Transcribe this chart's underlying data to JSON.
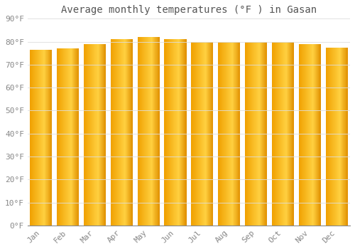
{
  "title": "Average monthly temperatures (°F ) in Gasan",
  "categories": [
    "Jan",
    "Feb",
    "Mar",
    "Apr",
    "May",
    "Jun",
    "Jul",
    "Aug",
    "Sep",
    "Oct",
    "Nov",
    "Dec"
  ],
  "values": [
    76.5,
    77.0,
    79.0,
    81.0,
    82.0,
    81.0,
    80.0,
    80.0,
    80.0,
    80.0,
    79.0,
    77.5
  ],
  "bar_color_left": "#F0A000",
  "bar_color_center": "#FFD040",
  "bar_color_right": "#E09000",
  "background_color": "#FFFFFF",
  "grid_color": "#DDDDDD",
  "text_color": "#888888",
  "title_color": "#555555",
  "ylim": [
    0,
    90
  ],
  "yticks": [
    0,
    10,
    20,
    30,
    40,
    50,
    60,
    70,
    80,
    90
  ],
  "ytick_labels": [
    "0°F",
    "10°F",
    "20°F",
    "30°F",
    "40°F",
    "50°F",
    "60°F",
    "70°F",
    "80°F",
    "90°F"
  ],
  "title_fontsize": 10,
  "tick_fontsize": 8,
  "font_family": "monospace"
}
